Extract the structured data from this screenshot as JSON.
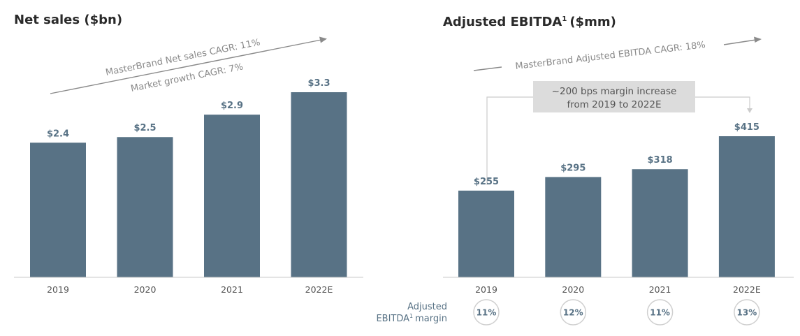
{
  "chart_data": [
    {
      "type": "bar",
      "title": "Net sales ($bn)",
      "categories": [
        "2019",
        "2020",
        "2021",
        "2022E"
      ],
      "values": [
        2.4,
        2.5,
        2.9,
        3.3
      ],
      "value_labels": [
        "$2.4",
        "$2.5",
        "$2.9",
        "$3.3"
      ],
      "ylim": [
        0,
        3.3
      ],
      "grid": false,
      "annotations": [
        "MasterBrand Net sales CAGR: 11%",
        "Market growth CAGR: 7%"
      ],
      "color": "#587285"
    },
    {
      "type": "bar",
      "title": "Adjusted EBITDA",
      "title_sup": "1",
      "title_suffix": "($mm)",
      "categories": [
        "2019",
        "2020",
        "2021",
        "2022E"
      ],
      "values": [
        255,
        295,
        318,
        415
      ],
      "value_labels": [
        "$255",
        "$295",
        "$318",
        "$415"
      ],
      "ylim": [
        0,
        415
      ],
      "grid": false,
      "annotations": [
        "MasterBrand Adjusted EBITDA CAGR: 18%"
      ],
      "callout": [
        "~200 bps margin increase",
        "from 2019 to 2022E"
      ],
      "margin_label": [
        "Adjusted",
        "EBITDA",
        "1",
        "margin"
      ],
      "margins": [
        "11%",
        "12%",
        "11%",
        "13%"
      ],
      "color": "#587285"
    }
  ]
}
